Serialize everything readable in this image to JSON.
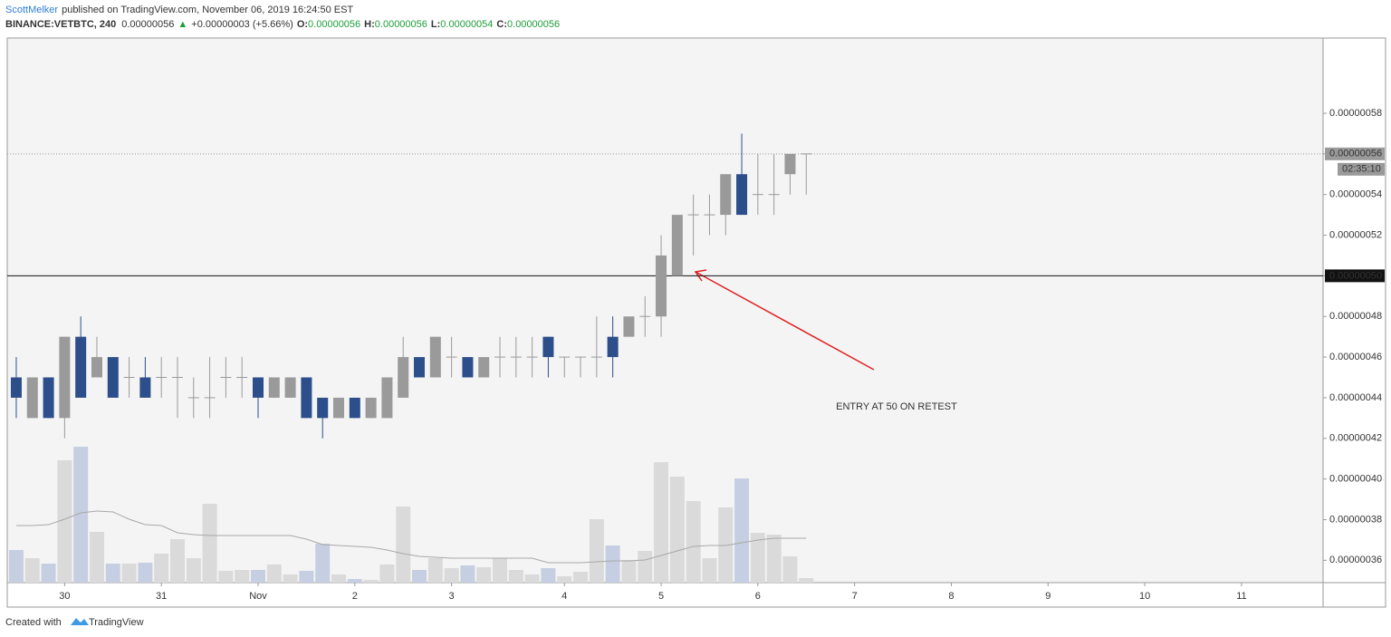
{
  "header": {
    "author": "ScottMelker",
    "published": "published on TradingView.com, November 06, 2019 16:24:50 EST",
    "symbol": "BINANCE:VETBTC, 240",
    "price": "0.00000056",
    "arrow": "▲",
    "change": "+0.00000003 (+5.66%)",
    "ohlc": [
      {
        "label": "O:",
        "value": "0.00000056"
      },
      {
        "label": "H:",
        "value": "0.00000056"
      },
      {
        "label": "L:",
        "value": "0.00000054"
      },
      {
        "label": "C:",
        "value": "0.00000056"
      }
    ]
  },
  "chart_data": {
    "type": "candlestick",
    "open": [
      4.5e-07,
      4.3e-07,
      4.5e-07,
      4.3e-07,
      4.7e-07,
      4.5e-07,
      4.6e-07,
      4.5e-07,
      4.5e-07,
      4.5e-07,
      4.5e-07,
      4.4e-07,
      4.4e-07,
      4.5e-07,
      4.5e-07,
      4.5e-07,
      4.4e-07,
      4.4e-07,
      4.5e-07,
      4.4e-07,
      4.3e-07,
      4.4e-07,
      4.3e-07,
      4.3e-07,
      4.4e-07,
      4.6e-07,
      4.5e-07,
      4.6e-07,
      4.6e-07,
      4.5e-07,
      4.6e-07,
      4.6e-07,
      4.6e-07,
      4.7e-07,
      4.6e-07,
      4.6e-07,
      4.6e-07,
      4.7e-07,
      4.7e-07,
      4.8e-07,
      4.8e-07,
      5e-07,
      5.3e-07,
      5.3e-07,
      5.3e-07,
      5.5e-07,
      5.4e-07,
      5.4e-07,
      5.5e-07,
      5.6e-07
    ],
    "high": [
      4.6e-07,
      4.5e-07,
      4.5e-07,
      4.7e-07,
      4.8e-07,
      4.7e-07,
      4.6e-07,
      4.6e-07,
      4.6e-07,
      4.6e-07,
      4.6e-07,
      4.5e-07,
      4.6e-07,
      4.6e-07,
      4.6e-07,
      4.5e-07,
      4.5e-07,
      4.5e-07,
      4.5e-07,
      4.4e-07,
      4.4e-07,
      4.4e-07,
      4.4e-07,
      4.5e-07,
      4.7e-07,
      4.6e-07,
      4.7e-07,
      4.7e-07,
      4.6e-07,
      4.6e-07,
      4.7e-07,
      4.7e-07,
      4.7e-07,
      4.7e-07,
      4.6e-07,
      4.6e-07,
      4.8e-07,
      4.8e-07,
      4.8e-07,
      4.9e-07,
      5.2e-07,
      5.3e-07,
      5.4e-07,
      5.4e-07,
      5.5e-07,
      5.7e-07,
      5.6e-07,
      5.6e-07,
      5.6e-07,
      5.6e-07
    ],
    "low": [
      4.3e-07,
      4.3e-07,
      4.3e-07,
      4.2e-07,
      4.4e-07,
      4.5e-07,
      4.4e-07,
      4.4e-07,
      4.4e-07,
      4.4e-07,
      4.3e-07,
      4.3e-07,
      4.3e-07,
      4.4e-07,
      4.4e-07,
      4.3e-07,
      4.4e-07,
      4.4e-07,
      4.3e-07,
      4.2e-07,
      4.3e-07,
      4.3e-07,
      4.3e-07,
      4.3e-07,
      4.4e-07,
      4.5e-07,
      4.5e-07,
      4.5e-07,
      4.5e-07,
      4.5e-07,
      4.5e-07,
      4.5e-07,
      4.5e-07,
      4.5e-07,
      4.5e-07,
      4.5e-07,
      4.5e-07,
      4.5e-07,
      4.7e-07,
      4.7e-07,
      4.7e-07,
      5e-07,
      5.1e-07,
      5.2e-07,
      5.2e-07,
      5.3e-07,
      5.3e-07,
      5.3e-07,
      5.4e-07,
      5.4e-07
    ],
    "close": [
      4.4e-07,
      4.5e-07,
      4.3e-07,
      4.7e-07,
      4.4e-07,
      4.6e-07,
      4.4e-07,
      4.5e-07,
      4.4e-07,
      4.5e-07,
      4.5e-07,
      4.4e-07,
      4.4e-07,
      4.5e-07,
      4.5e-07,
      4.4e-07,
      4.5e-07,
      4.5e-07,
      4.3e-07,
      4.3e-07,
      4.4e-07,
      4.3e-07,
      4.4e-07,
      4.5e-07,
      4.6e-07,
      4.5e-07,
      4.7e-07,
      4.6e-07,
      4.5e-07,
      4.6e-07,
      4.6e-07,
      4.6e-07,
      4.6e-07,
      4.6e-07,
      4.6e-07,
      4.6e-07,
      4.6e-07,
      4.6e-07,
      4.8e-07,
      4.8e-07,
      5.1e-07,
      5.3e-07,
      5.3e-07,
      5.3e-07,
      5.5e-07,
      5.3e-07,
      5.4e-07,
      5.4e-07,
      5.6e-07,
      5.6e-07
    ],
    "volume": [
      36,
      27,
      21,
      135,
      150,
      56,
      21,
      21,
      22,
      32,
      48,
      27,
      87,
      13,
      14,
      14,
      20,
      9,
      13,
      43,
      9,
      4,
      3,
      20,
      84,
      14,
      27,
      16,
      19,
      17,
      27,
      14,
      9,
      16,
      7,
      12,
      70,
      41,
      25,
      35,
      133,
      117,
      90,
      27,
      83,
      115,
      55,
      53,
      29,
      5
    ],
    "volume_ma": [
      63,
      63,
      64,
      70,
      77,
      79,
      78,
      70,
      64,
      63,
      55,
      53,
      52,
      52,
      52,
      52,
      52,
      52,
      48,
      42,
      41,
      40,
      39,
      36,
      32,
      29,
      28,
      27,
      27,
      27,
      27,
      27,
      27,
      22,
      22,
      22,
      23,
      24,
      24,
      25,
      30,
      35,
      40,
      41,
      41,
      44,
      47,
      49,
      49,
      49
    ],
    "up_color": "#9a9a9a",
    "down_color": "#2c4e8b",
    "up_volume_color": "#dadada",
    "down_volume_color": "#c6cfe1",
    "volume_ma_color": "#a8a8a8",
    "xlim": [
      -0.56,
      81.06
    ],
    "ylim": [
      3.49e-07,
      6.17e-07
    ],
    "xticks": [
      {
        "value": 3,
        "label": "30"
      },
      {
        "value": 9,
        "label": "31"
      },
      {
        "value": 15,
        "label": "Nov"
      },
      {
        "value": 21,
        "label": "2"
      },
      {
        "value": 27,
        "label": "3"
      },
      {
        "value": 34,
        "label": "4"
      },
      {
        "value": 40,
        "label": "5"
      },
      {
        "value": 46,
        "label": "6"
      },
      {
        "value": 52,
        "label": "7"
      },
      {
        "value": 58,
        "label": "8"
      },
      {
        "value": 64,
        "label": "9"
      },
      {
        "value": 70,
        "label": "10"
      },
      {
        "value": 76,
        "label": "11"
      }
    ],
    "yticks": [
      {
        "value": 3.6e-07,
        "label": "0.00000036"
      },
      {
        "value": 3.8e-07,
        "label": "0.00000038"
      },
      {
        "value": 4e-07,
        "label": "0.00000040"
      },
      {
        "value": 4.2e-07,
        "label": "0.00000042"
      },
      {
        "value": 4.4e-07,
        "label": "0.00000044"
      },
      {
        "value": 4.6e-07,
        "label": "0.00000046"
      },
      {
        "value": 4.8e-07,
        "label": "0.00000048"
      },
      {
        "value": 5e-07,
        "label": "0.00000050"
      },
      {
        "value": 5.2e-07,
        "label": "0.00000052"
      },
      {
        "value": 5.4e-07,
        "label": "0.00000054"
      },
      {
        "value": 5.6e-07,
        "label": "0.00000056"
      },
      {
        "value": 5.8e-07,
        "label": "0.00000058"
      }
    ],
    "price_label": {
      "value": 5.6e-07,
      "label": "0.00000056"
    },
    "countdown": "02:35:10",
    "hline": {
      "value": 5e-07,
      "label": "0.00000050"
    },
    "annotation": "ENTRY AT 50 ON RETEST"
  },
  "footer": {
    "text": "Created with",
    "brand": "TradingView"
  }
}
